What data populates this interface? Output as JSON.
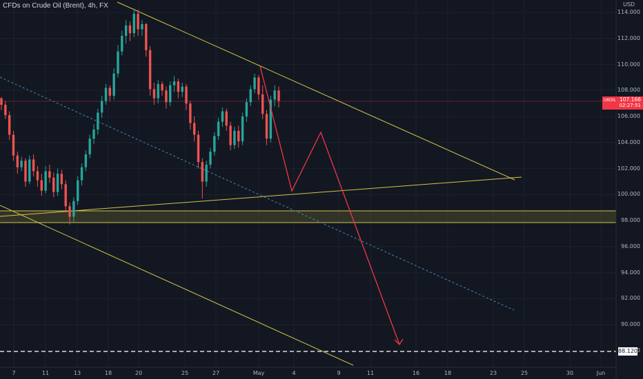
{
  "header": {
    "title": "CFDs on Crude Oil (Brent), 4h, FX",
    "currency": "USD"
  },
  "price_tag": {
    "symbol": "UKOIL",
    "value": "107.166",
    "countdown": "02:27:51"
  },
  "target_tag": {
    "value": "88.120"
  },
  "chart_data": {
    "type": "candlestick",
    "y_axis": {
      "ticks": [
        "114.000",
        "112.000",
        "110.000",
        "108.000",
        "106.000",
        "104.000",
        "102.000",
        "100.000",
        "98.000",
        "96.000",
        "94.000",
        "92.000",
        "90.000",
        "88.000"
      ],
      "ylim": [
        86.5,
        114.5
      ]
    },
    "x_axis": {
      "ticks": [
        "7",
        "11",
        "13",
        "18",
        "20",
        "25",
        "27",
        "May",
        "4",
        "9",
        "11",
        "16",
        "18",
        "23",
        "25",
        "30",
        "Jun"
      ]
    },
    "current_price": 107.166,
    "target_level": 88.12,
    "colors": {
      "up": "#26a69a",
      "down": "#ef5350",
      "trendline": "#d4c54a",
      "projection": "#f23645",
      "channel_mid": "#3d8ebd"
    },
    "candles": [
      [
        107.4,
        107.5,
        106.5,
        106.9
      ],
      [
        106.9,
        107.2,
        105.8,
        106.1
      ],
      [
        106.1,
        106.4,
        104.2,
        104.6
      ],
      [
        104.6,
        104.9,
        102.6,
        103.0
      ],
      [
        103.0,
        103.3,
        101.6,
        102.1
      ],
      [
        102.1,
        102.9,
        101.8,
        102.6
      ],
      [
        102.6,
        102.8,
        100.6,
        101.0
      ],
      [
        101.0,
        103.0,
        100.8,
        102.7
      ],
      [
        102.7,
        103.1,
        101.4,
        101.8
      ],
      [
        101.8,
        102.2,
        100.6,
        101.1
      ],
      [
        101.1,
        101.6,
        99.9,
        100.3
      ],
      [
        100.3,
        102.2,
        100.1,
        101.8
      ],
      [
        101.8,
        102.3,
        100.9,
        101.3
      ],
      [
        101.3,
        101.7,
        99.8,
        100.2
      ],
      [
        100.2,
        102.0,
        99.9,
        101.6
      ],
      [
        101.6,
        101.9,
        100.4,
        100.8
      ],
      [
        100.8,
        101.1,
        98.6,
        99.1
      ],
      [
        99.1,
        99.4,
        97.7,
        98.3
      ],
      [
        98.3,
        99.8,
        97.9,
        99.5
      ],
      [
        99.5,
        101.4,
        99.2,
        101.1
      ],
      [
        101.1,
        102.4,
        100.7,
        102.1
      ],
      [
        102.1,
        103.4,
        101.8,
        103.1
      ],
      [
        103.1,
        104.6,
        102.8,
        104.3
      ],
      [
        104.3,
        105.4,
        103.9,
        105.0
      ],
      [
        105.0,
        106.6,
        104.6,
        106.3
      ],
      [
        106.3,
        107.6,
        105.9,
        107.2
      ],
      [
        107.2,
        108.5,
        106.9,
        108.2
      ],
      [
        108.2,
        108.4,
        107.2,
        107.6
      ],
      [
        107.6,
        109.7,
        107.3,
        109.3
      ],
      [
        109.3,
        111.5,
        109.0,
        111.0
      ],
      [
        111.0,
        112.6,
        110.7,
        112.2
      ],
      [
        112.2,
        113.4,
        111.6,
        113.0
      ],
      [
        113.0,
        113.3,
        111.8,
        112.4
      ],
      [
        112.4,
        114.3,
        112.1,
        113.9
      ],
      [
        113.9,
        114.2,
        112.2,
        112.7
      ],
      [
        112.7,
        113.4,
        112.2,
        113.1
      ],
      [
        113.1,
        113.2,
        110.6,
        111.1
      ],
      [
        111.1,
        111.4,
        107.6,
        108.1
      ],
      [
        108.1,
        108.6,
        106.9,
        107.4
      ],
      [
        107.4,
        108.8,
        107.0,
        108.5
      ],
      [
        108.5,
        108.7,
        107.6,
        108.0
      ],
      [
        108.0,
        108.3,
        106.6,
        107.1
      ],
      [
        107.1,
        108.7,
        106.8,
        108.4
      ],
      [
        108.4,
        109.1,
        107.9,
        108.7
      ],
      [
        108.7,
        108.9,
        107.4,
        107.9
      ],
      [
        107.9,
        108.6,
        107.5,
        108.3
      ],
      [
        108.3,
        108.5,
        106.5,
        107.0
      ],
      [
        107.0,
        107.2,
        105.0,
        105.5
      ],
      [
        105.5,
        106.0,
        104.1,
        104.6
      ],
      [
        104.6,
        104.9,
        102.0,
        102.5
      ],
      [
        102.5,
        102.8,
        99.7,
        101.0
      ],
      [
        101.0,
        102.6,
        100.6,
        102.3
      ],
      [
        102.3,
        103.6,
        102.0,
        103.3
      ],
      [
        103.3,
        104.8,
        103.0,
        104.5
      ],
      [
        104.5,
        105.9,
        104.2,
        105.6
      ],
      [
        105.6,
        106.7,
        105.2,
        106.4
      ],
      [
        106.4,
        106.6,
        104.9,
        105.3
      ],
      [
        105.3,
        105.6,
        103.4,
        103.8
      ],
      [
        103.8,
        105.2,
        103.5,
        104.9
      ],
      [
        104.9,
        105.3,
        103.6,
        104.1
      ],
      [
        104.1,
        106.3,
        103.8,
        106.0
      ],
      [
        106.0,
        107.4,
        105.6,
        107.1
      ],
      [
        107.1,
        108.4,
        106.8,
        108.1
      ],
      [
        108.1,
        109.3,
        107.8,
        109.0
      ],
      [
        109.0,
        109.2,
        107.3,
        107.7
      ],
      [
        107.7,
        108.4,
        105.8,
        106.2
      ],
      [
        106.2,
        106.5,
        103.8,
        104.3
      ],
      [
        104.3,
        107.6,
        104.0,
        107.3
      ],
      [
        107.3,
        108.4,
        106.8,
        108.0
      ],
      [
        108.0,
        108.3,
        106.7,
        107.2
      ]
    ]
  }
}
